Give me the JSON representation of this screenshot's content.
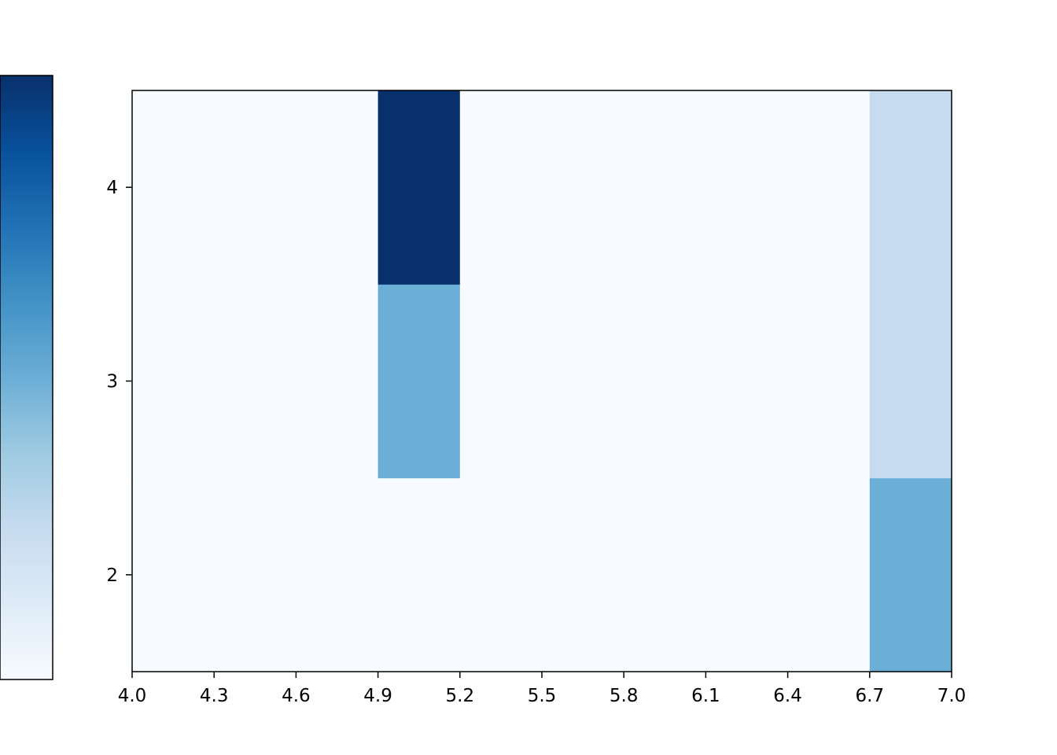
{
  "chart_data": {
    "type": "heatmap",
    "title": "",
    "xlabel": "",
    "ylabel": "",
    "x_bins": [
      4.0,
      4.3,
      4.6,
      4.9,
      5.2,
      5.5,
      5.8,
      6.1,
      6.4,
      6.7,
      7.0
    ],
    "y_bins": [
      1.5,
      2.5,
      3.5,
      4.5
    ],
    "counts": [
      [
        0,
        0,
        0,
        0,
        0,
        0,
        0,
        0,
        0,
        1
      ],
      [
        0,
        0,
        0,
        1,
        0,
        0,
        0,
        0,
        0,
        0.5
      ],
      [
        0,
        0,
        0,
        2,
        0,
        0,
        0,
        0,
        0,
        0.5
      ]
    ],
    "xlim": [
      4.0,
      7.0
    ],
    "ylim": [
      1.5,
      4.5
    ],
    "xticks": [
      "4.0",
      "4.3",
      "4.6",
      "4.9",
      "5.2",
      "5.5",
      "5.8",
      "6.1",
      "6.4",
      "6.7",
      "7.0"
    ],
    "yticks": [
      {
        "value": 2,
        "label": "2"
      },
      {
        "value": 3,
        "label": "3"
      },
      {
        "value": 4,
        "label": "4"
      }
    ],
    "colormap": "Blues",
    "colorbar": {
      "placement": "left",
      "ticks": []
    },
    "grid": false,
    "legend": "none"
  }
}
